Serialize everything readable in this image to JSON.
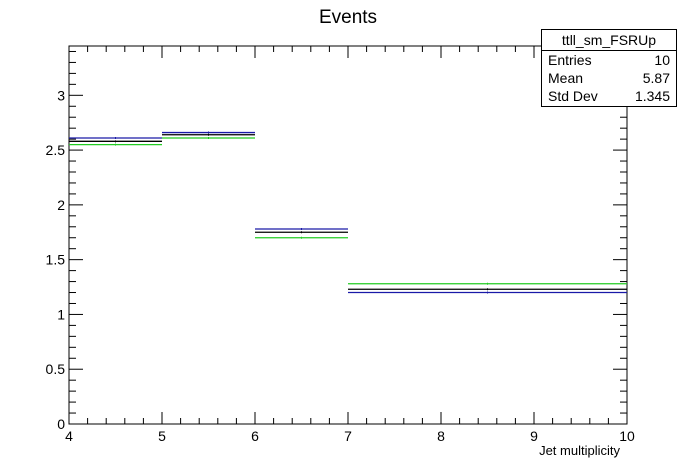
{
  "chart_data": {
    "type": "histogram",
    "title": "Events",
    "xlabel": "Jet multiplicity",
    "ylabel": "",
    "xlim": [
      4,
      10
    ],
    "ylim": [
      0,
      3.45
    ],
    "x_ticks": [
      "4",
      "5",
      "6",
      "7",
      "8",
      "9",
      "10"
    ],
    "y_ticks": [
      "0",
      "0.5",
      "1",
      "1.5",
      "2",
      "2.5",
      "3"
    ],
    "bin_edges": [
      4,
      5,
      6,
      7,
      10
    ],
    "series": [
      {
        "color": "#000000",
        "values": [
          2.58,
          2.64,
          1.75,
          1.23
        ]
      },
      {
        "color": "#1a1aa8",
        "values": [
          2.61,
          2.66,
          1.78,
          1.2
        ]
      },
      {
        "color": "#22cc22",
        "values": [
          2.55,
          2.61,
          1.7,
          1.28
        ]
      }
    ],
    "grid": false,
    "legend": "none"
  },
  "stats": {
    "name": "ttll_sm_FSRUp",
    "rows": [
      {
        "label": "Entries",
        "value": "10"
      },
      {
        "label": "Mean",
        "value": "5.87"
      },
      {
        "label": "Std Dev",
        "value": "1.345"
      }
    ]
  }
}
